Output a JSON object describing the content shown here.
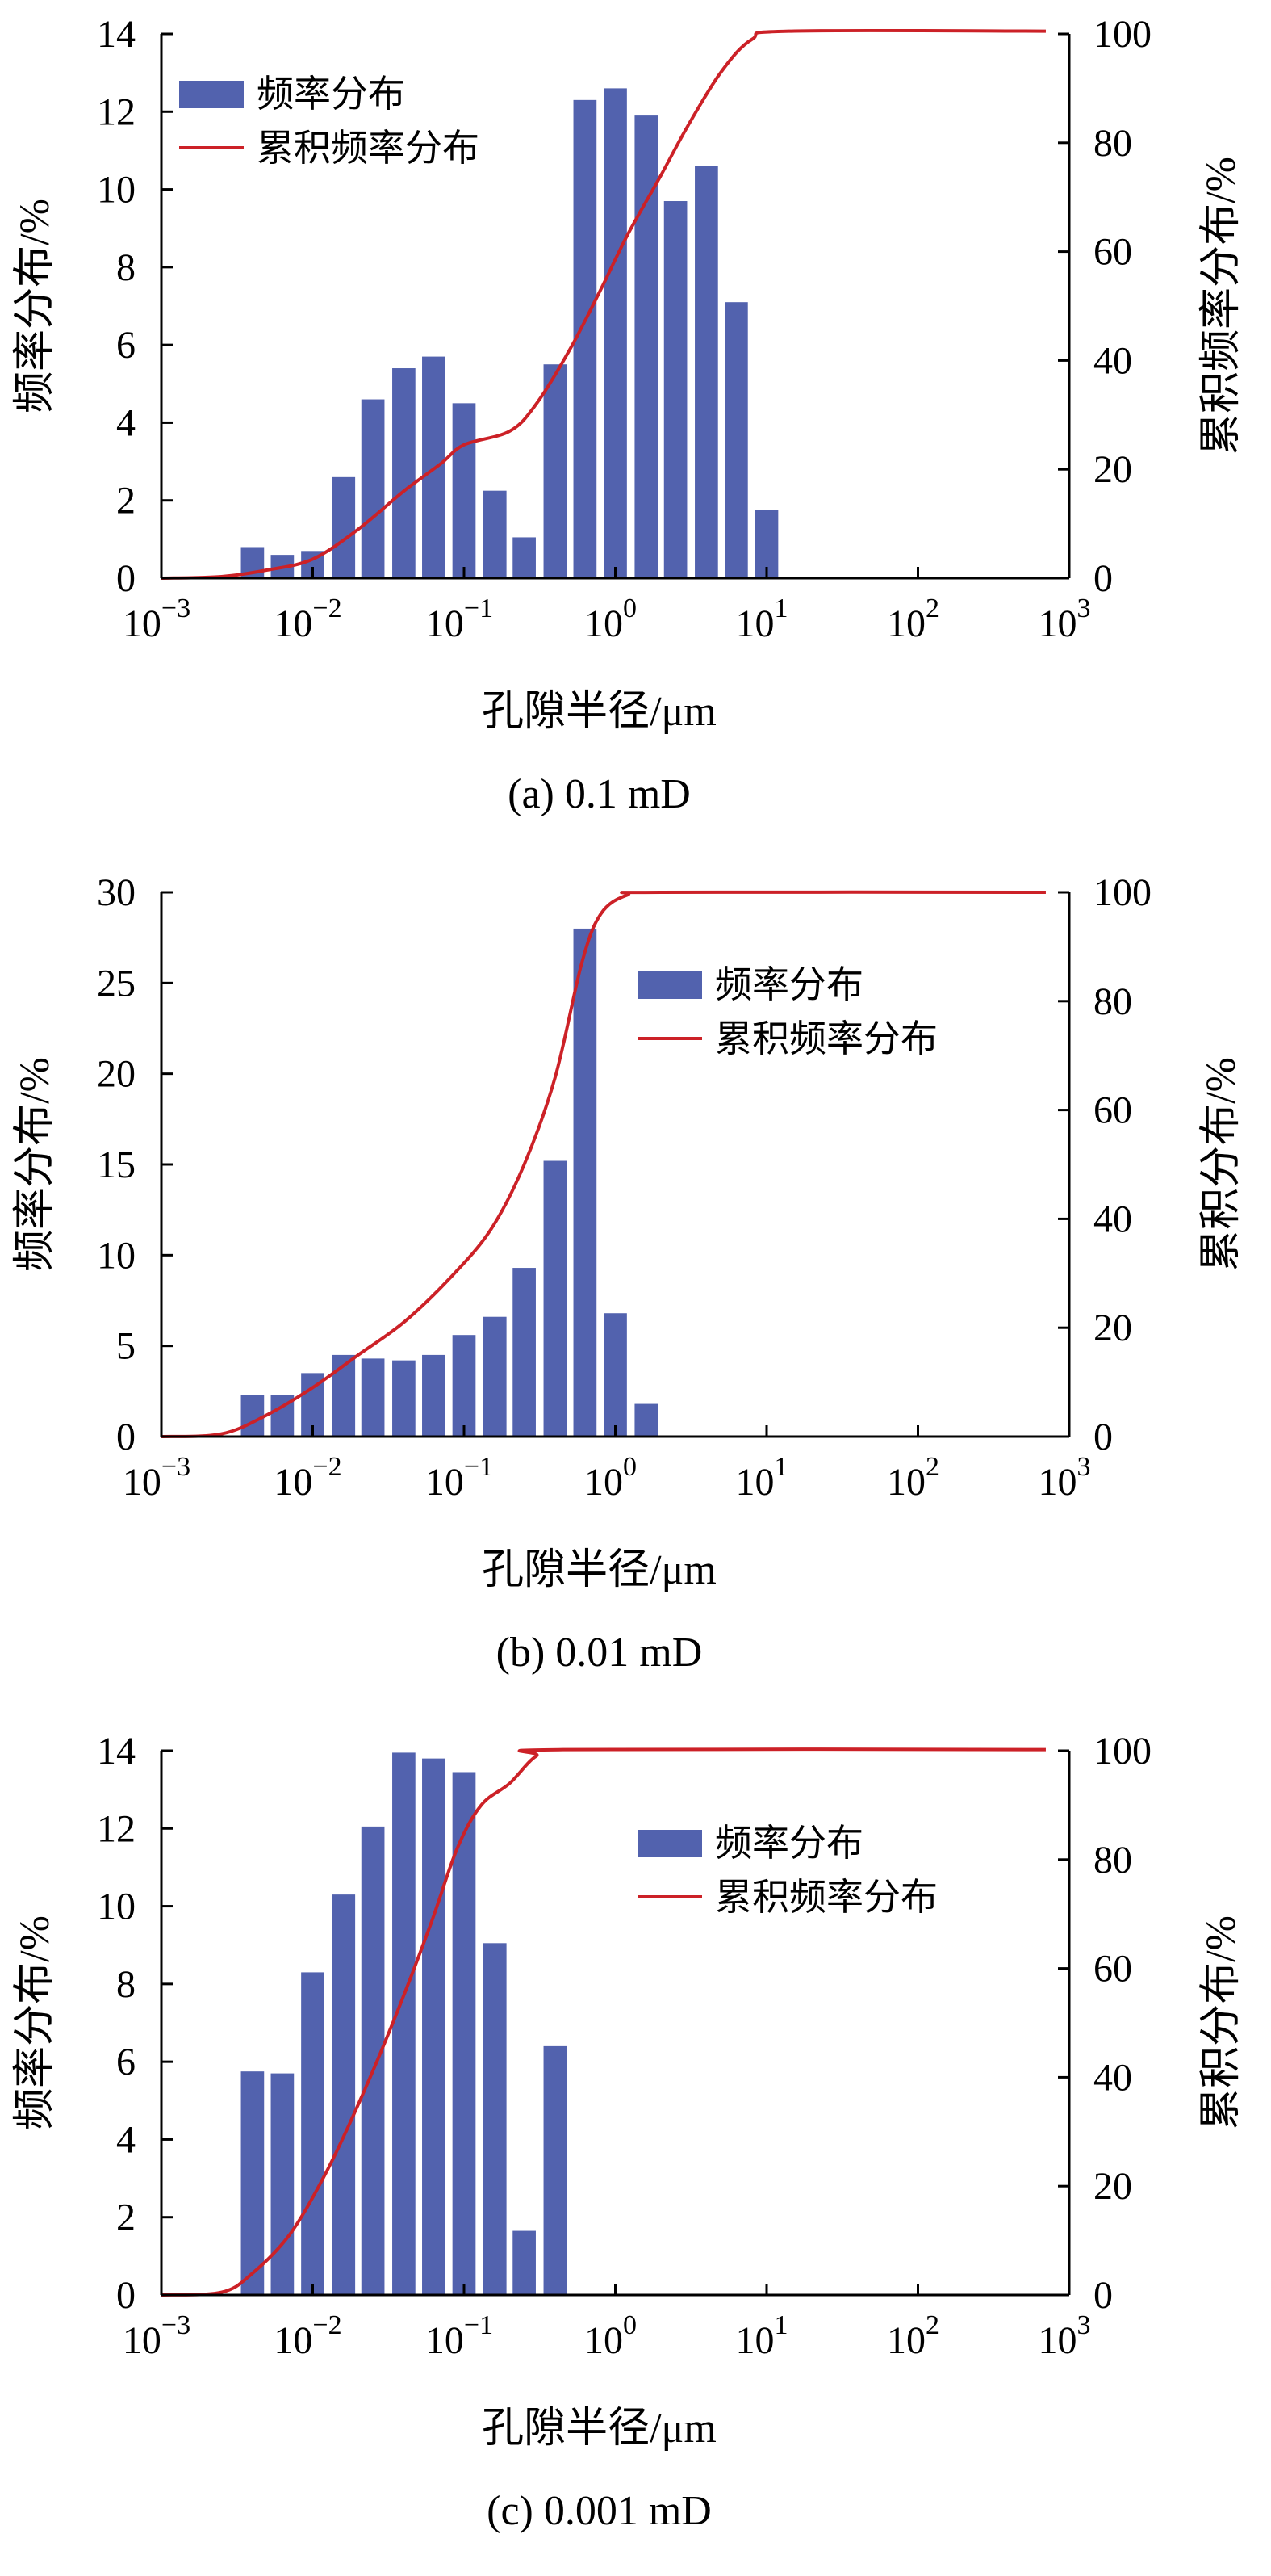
{
  "colors": {
    "bar": "#5262ae",
    "cumulative_line": "#cc2127",
    "axis": "#000000"
  },
  "chart_data": [
    {
      "type": "bar",
      "caption": "(a) 0.1 mD",
      "xlabel": "孔隙半径/μm",
      "ylabel_left": "频率分布/%",
      "ylabel_right": "累积频率分布/%",
      "x_scale": "log",
      "xlim": [
        0.001,
        1000
      ],
      "x_ticks": [
        {
          "value": 0.001,
          "base": "10",
          "exp": "−3"
        },
        {
          "value": 0.01,
          "base": "10",
          "exp": "−2"
        },
        {
          "value": 0.1,
          "base": "10",
          "exp": "−1"
        },
        {
          "value": 1,
          "base": "10",
          "exp": "0"
        },
        {
          "value": 10,
          "base": "10",
          "exp": "1"
        },
        {
          "value": 100,
          "base": "10",
          "exp": "2"
        },
        {
          "value": 1000,
          "base": "10",
          "exp": "3"
        }
      ],
      "ylim_left": [
        0,
        14
      ],
      "y_ticks_left": [
        "0",
        "2",
        "4",
        "6",
        "8",
        "10",
        "12",
        "14"
      ],
      "ylim_right": [
        0,
        100
      ],
      "y_ticks_right": [
        "0",
        "20",
        "40",
        "60",
        "80",
        "100"
      ],
      "legend": {
        "position": "top-left",
        "bar_label": "频率分布",
        "line_label": "累积频率分布"
      },
      "grid": false,
      "bars": [
        {
          "x": 0.004,
          "value": 0.8
        },
        {
          "x": 0.0063,
          "value": 0.6
        },
        {
          "x": 0.01,
          "value": 0.7
        },
        {
          "x": 0.016,
          "value": 2.6
        },
        {
          "x": 0.025,
          "value": 4.6
        },
        {
          "x": 0.04,
          "value": 5.4
        },
        {
          "x": 0.063,
          "value": 5.7
        },
        {
          "x": 0.1,
          "value": 4.5
        },
        {
          "x": 0.16,
          "value": 2.25
        },
        {
          "x": 0.25,
          "value": 1.05
        },
        {
          "x": 0.4,
          "value": 5.5
        },
        {
          "x": 0.63,
          "value": 12.3
        },
        {
          "x": 1.0,
          "value": 12.6
        },
        {
          "x": 1.6,
          "value": 11.9
        },
        {
          "x": 2.5,
          "value": 9.7
        },
        {
          "x": 4.0,
          "value": 10.6
        },
        {
          "x": 6.3,
          "value": 7.1
        },
        {
          "x": 10,
          "value": 1.75
        }
      ],
      "cumulative": [
        {
          "x": 0.001,
          "value": 0
        },
        {
          "x": 0.0025,
          "value": 0.3
        },
        {
          "x": 0.005,
          "value": 1.5
        },
        {
          "x": 0.01,
          "value": 3.5
        },
        {
          "x": 0.02,
          "value": 9
        },
        {
          "x": 0.04,
          "value": 16
        },
        {
          "x": 0.07,
          "value": 21
        },
        {
          "x": 0.1,
          "value": 24.5
        },
        {
          "x": 0.2,
          "value": 27
        },
        {
          "x": 0.3,
          "value": 32
        },
        {
          "x": 0.5,
          "value": 42
        },
        {
          "x": 0.8,
          "value": 53
        },
        {
          "x": 1.2,
          "value": 63
        },
        {
          "x": 2,
          "value": 74
        },
        {
          "x": 3,
          "value": 83
        },
        {
          "x": 5,
          "value": 93
        },
        {
          "x": 8,
          "value": 99
        },
        {
          "x": 14,
          "value": 100.5
        },
        {
          "x": 700,
          "value": 100.5
        }
      ]
    },
    {
      "type": "bar",
      "caption": "(b) 0.01 mD",
      "xlabel": "孔隙半径/μm",
      "ylabel_left": "频率分布/%",
      "ylabel_right": "累积分布/%",
      "x_scale": "log",
      "xlim": [
        0.001,
        1000
      ],
      "x_ticks": [
        {
          "value": 0.001,
          "base": "10",
          "exp": "−3"
        },
        {
          "value": 0.01,
          "base": "10",
          "exp": "−2"
        },
        {
          "value": 0.1,
          "base": "10",
          "exp": "−1"
        },
        {
          "value": 1,
          "base": "10",
          "exp": "0"
        },
        {
          "value": 10,
          "base": "10",
          "exp": "1"
        },
        {
          "value": 100,
          "base": "10",
          "exp": "2"
        },
        {
          "value": 1000,
          "base": "10",
          "exp": "3"
        }
      ],
      "ylim_left": [
        0,
        30
      ],
      "y_ticks_left": [
        "0",
        "5",
        "10",
        "15",
        "20",
        "25",
        "30"
      ],
      "ylim_right": [
        0,
        100
      ],
      "y_ticks_right": [
        "0",
        "20",
        "40",
        "60",
        "80",
        "100"
      ],
      "legend": {
        "position": "top-right",
        "bar_label": "频率分布",
        "line_label": "累积频率分布"
      },
      "grid": false,
      "bars": [
        {
          "x": 0.004,
          "value": 2.3
        },
        {
          "x": 0.0063,
          "value": 2.3
        },
        {
          "x": 0.01,
          "value": 3.5
        },
        {
          "x": 0.016,
          "value": 4.5
        },
        {
          "x": 0.025,
          "value": 4.3
        },
        {
          "x": 0.04,
          "value": 4.2
        },
        {
          "x": 0.063,
          "value": 4.5
        },
        {
          "x": 0.1,
          "value": 5.6
        },
        {
          "x": 0.16,
          "value": 6.6
        },
        {
          "x": 0.25,
          "value": 9.3
        },
        {
          "x": 0.4,
          "value": 15.2
        },
        {
          "x": 0.63,
          "value": 28.0
        },
        {
          "x": 1.0,
          "value": 6.8
        },
        {
          "x": 1.6,
          "value": 1.8
        }
      ],
      "cumulative": [
        {
          "x": 0.001,
          "value": 0
        },
        {
          "x": 0.0025,
          "value": 0.5
        },
        {
          "x": 0.005,
          "value": 4
        },
        {
          "x": 0.01,
          "value": 9
        },
        {
          "x": 0.02,
          "value": 15
        },
        {
          "x": 0.04,
          "value": 21
        },
        {
          "x": 0.08,
          "value": 29
        },
        {
          "x": 0.15,
          "value": 38
        },
        {
          "x": 0.25,
          "value": 50
        },
        {
          "x": 0.4,
          "value": 66
        },
        {
          "x": 0.6,
          "value": 87
        },
        {
          "x": 0.8,
          "value": 96
        },
        {
          "x": 1.2,
          "value": 99.5
        },
        {
          "x": 2,
          "value": 100
        },
        {
          "x": 700,
          "value": 100
        }
      ]
    },
    {
      "type": "bar",
      "caption": "(c) 0.001 mD",
      "xlabel": "孔隙半径/μm",
      "ylabel_left": "频率分布/%",
      "ylabel_right": "累积分布/%",
      "x_scale": "log",
      "xlim": [
        0.001,
        1000
      ],
      "x_ticks": [
        {
          "value": 0.001,
          "base": "10",
          "exp": "−3"
        },
        {
          "value": 0.01,
          "base": "10",
          "exp": "−2"
        },
        {
          "value": 0.1,
          "base": "10",
          "exp": "−1"
        },
        {
          "value": 1,
          "base": "10",
          "exp": "0"
        },
        {
          "value": 10,
          "base": "10",
          "exp": "1"
        },
        {
          "value": 100,
          "base": "10",
          "exp": "2"
        },
        {
          "value": 1000,
          "base": "10",
          "exp": "3"
        }
      ],
      "ylim_left": [
        0,
        14
      ],
      "y_ticks_left": [
        "0",
        "2",
        "4",
        "6",
        "8",
        "10",
        "12",
        "14"
      ],
      "ylim_right": [
        0,
        100
      ],
      "y_ticks_right": [
        "0",
        "20",
        "40",
        "60",
        "80",
        "100"
      ],
      "legend": {
        "position": "top-right",
        "bar_label": "频率分布",
        "line_label": "累积频率分布"
      },
      "grid": false,
      "bars": [
        {
          "x": 0.004,
          "value": 5.75
        },
        {
          "x": 0.0063,
          "value": 5.7
        },
        {
          "x": 0.01,
          "value": 8.3
        },
        {
          "x": 0.016,
          "value": 10.3
        },
        {
          "x": 0.025,
          "value": 12.05
        },
        {
          "x": 0.04,
          "value": 13.95
        },
        {
          "x": 0.063,
          "value": 13.8
        },
        {
          "x": 0.1,
          "value": 13.45
        },
        {
          "x": 0.16,
          "value": 9.05
        },
        {
          "x": 0.25,
          "value": 1.65
        },
        {
          "x": 0.4,
          "value": 6.4
        }
      ],
      "cumulative": [
        {
          "x": 0.001,
          "value": 0
        },
        {
          "x": 0.0025,
          "value": 0.5
        },
        {
          "x": 0.004,
          "value": 4
        },
        {
          "x": 0.007,
          "value": 11
        },
        {
          "x": 0.012,
          "value": 22
        },
        {
          "x": 0.02,
          "value": 35
        },
        {
          "x": 0.035,
          "value": 51
        },
        {
          "x": 0.06,
          "value": 68
        },
        {
          "x": 0.09,
          "value": 82
        },
        {
          "x": 0.13,
          "value": 90
        },
        {
          "x": 0.2,
          "value": 94
        },
        {
          "x": 0.3,
          "value": 99
        },
        {
          "x": 0.45,
          "value": 100.2
        },
        {
          "x": 700,
          "value": 100.2
        }
      ]
    }
  ]
}
